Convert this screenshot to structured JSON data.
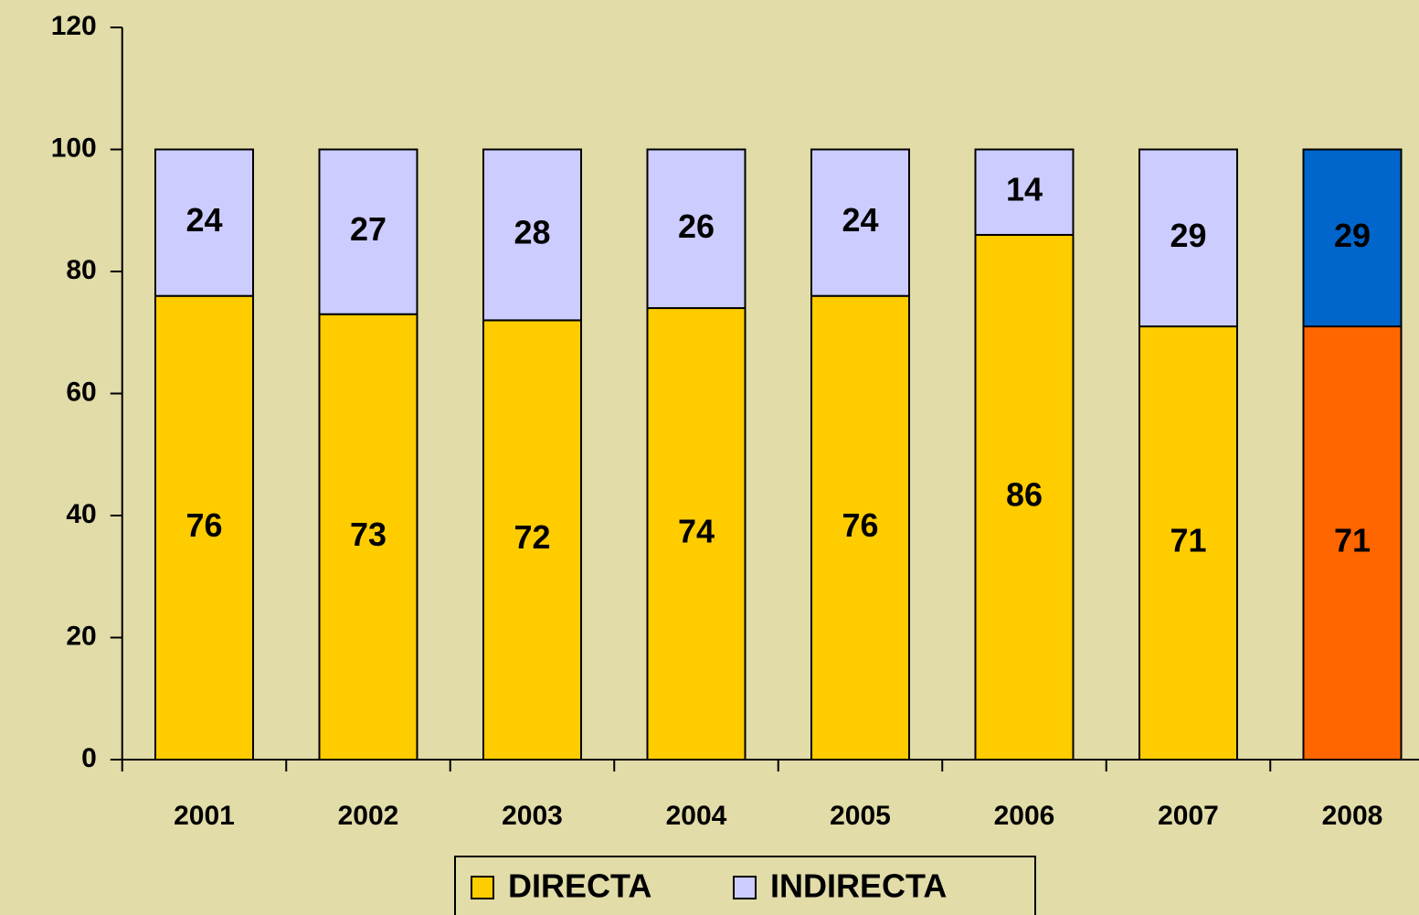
{
  "chart_data": {
    "type": "stacked_bar",
    "categories": [
      "2001",
      "2002",
      "2003",
      "2004",
      "2005",
      "2006",
      "2007",
      "2008"
    ],
    "series": [
      {
        "name": "DIRECTA",
        "color": "#ffcc00",
        "values": [
          76,
          73,
          72,
          74,
          76,
          86,
          71,
          71
        ],
        "colors": [
          "#ffcc00",
          "#ffcc00",
          "#ffcc00",
          "#ffcc00",
          "#ffcc00",
          "#ffcc00",
          "#ffcc00",
          "#ff6600"
        ]
      },
      {
        "name": "INDIRECTA",
        "color": "#ccccff",
        "values": [
          24,
          27,
          28,
          26,
          24,
          14,
          29,
          29
        ],
        "colors": [
          "#ccccff",
          "#ccccff",
          "#ccccff",
          "#ccccff",
          "#ccccff",
          "#ccccff",
          "#ccccff",
          "#0066cc"
        ]
      }
    ],
    "ylim": [
      0,
      120
    ],
    "yticks": [
      0,
      20,
      40,
      60,
      80,
      100,
      120
    ],
    "grid": false,
    "legend": "bottom"
  }
}
